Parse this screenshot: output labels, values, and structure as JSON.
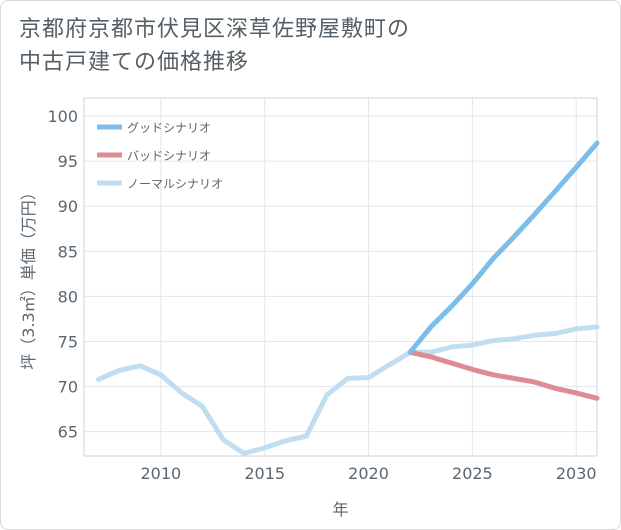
{
  "title_line1": "京都府京都市伏見区深草佐野屋敷町の",
  "title_line2": "中古戸建ての価格推移",
  "chart_data": {
    "type": "line",
    "xlabel": "年",
    "ylabel": "坪（3.3㎡）単価（万円）",
    "xlim": [
      2006.3,
      2031
    ],
    "ylim": [
      62.3,
      102
    ],
    "x_ticks": [
      2010,
      2015,
      2020,
      2025,
      2030
    ],
    "y_ticks": [
      65,
      70,
      75,
      80,
      85,
      90,
      95,
      100
    ],
    "grid": true,
    "legend_position": "top-left",
    "series": [
      {
        "name": "グッドシナリオ",
        "color": "#7cbdea",
        "x": [
          2022,
          2023,
          2024,
          2025,
          2026,
          2027,
          2028,
          2029,
          2030,
          2031
        ],
        "y": [
          73.8,
          76.6,
          78.9,
          81.4,
          84.2,
          86.6,
          89.1,
          91.7,
          94.3,
          97.0
        ]
      },
      {
        "name": "バッドシナリオ",
        "color": "#de8b91",
        "x": [
          2022,
          2023,
          2024,
          2025,
          2026,
          2027,
          2028,
          2029,
          2030,
          2031
        ],
        "y": [
          73.8,
          73.3,
          72.6,
          71.9,
          71.3,
          70.9,
          70.5,
          69.8,
          69.3,
          68.7
        ]
      },
      {
        "name": "ノーマルシナリオ",
        "color": "#c0def0",
        "x": [
          2007,
          2008,
          2009,
          2010,
          2011,
          2012,
          2013,
          2014,
          2015,
          2016,
          2017,
          2018,
          2019,
          2020,
          2021,
          2022,
          2023,
          2024,
          2025,
          2026,
          2027,
          2028,
          2029,
          2030,
          2031
        ],
        "y": [
          70.8,
          71.8,
          72.3,
          71.3,
          69.3,
          67.8,
          64.1,
          62.6,
          63.2,
          64.0,
          64.5,
          69.1,
          70.9,
          71.0,
          72.4,
          73.8,
          73.8,
          74.4,
          74.6,
          75.1,
          75.3,
          75.7,
          75.9,
          76.4,
          76.6
        ]
      }
    ]
  }
}
